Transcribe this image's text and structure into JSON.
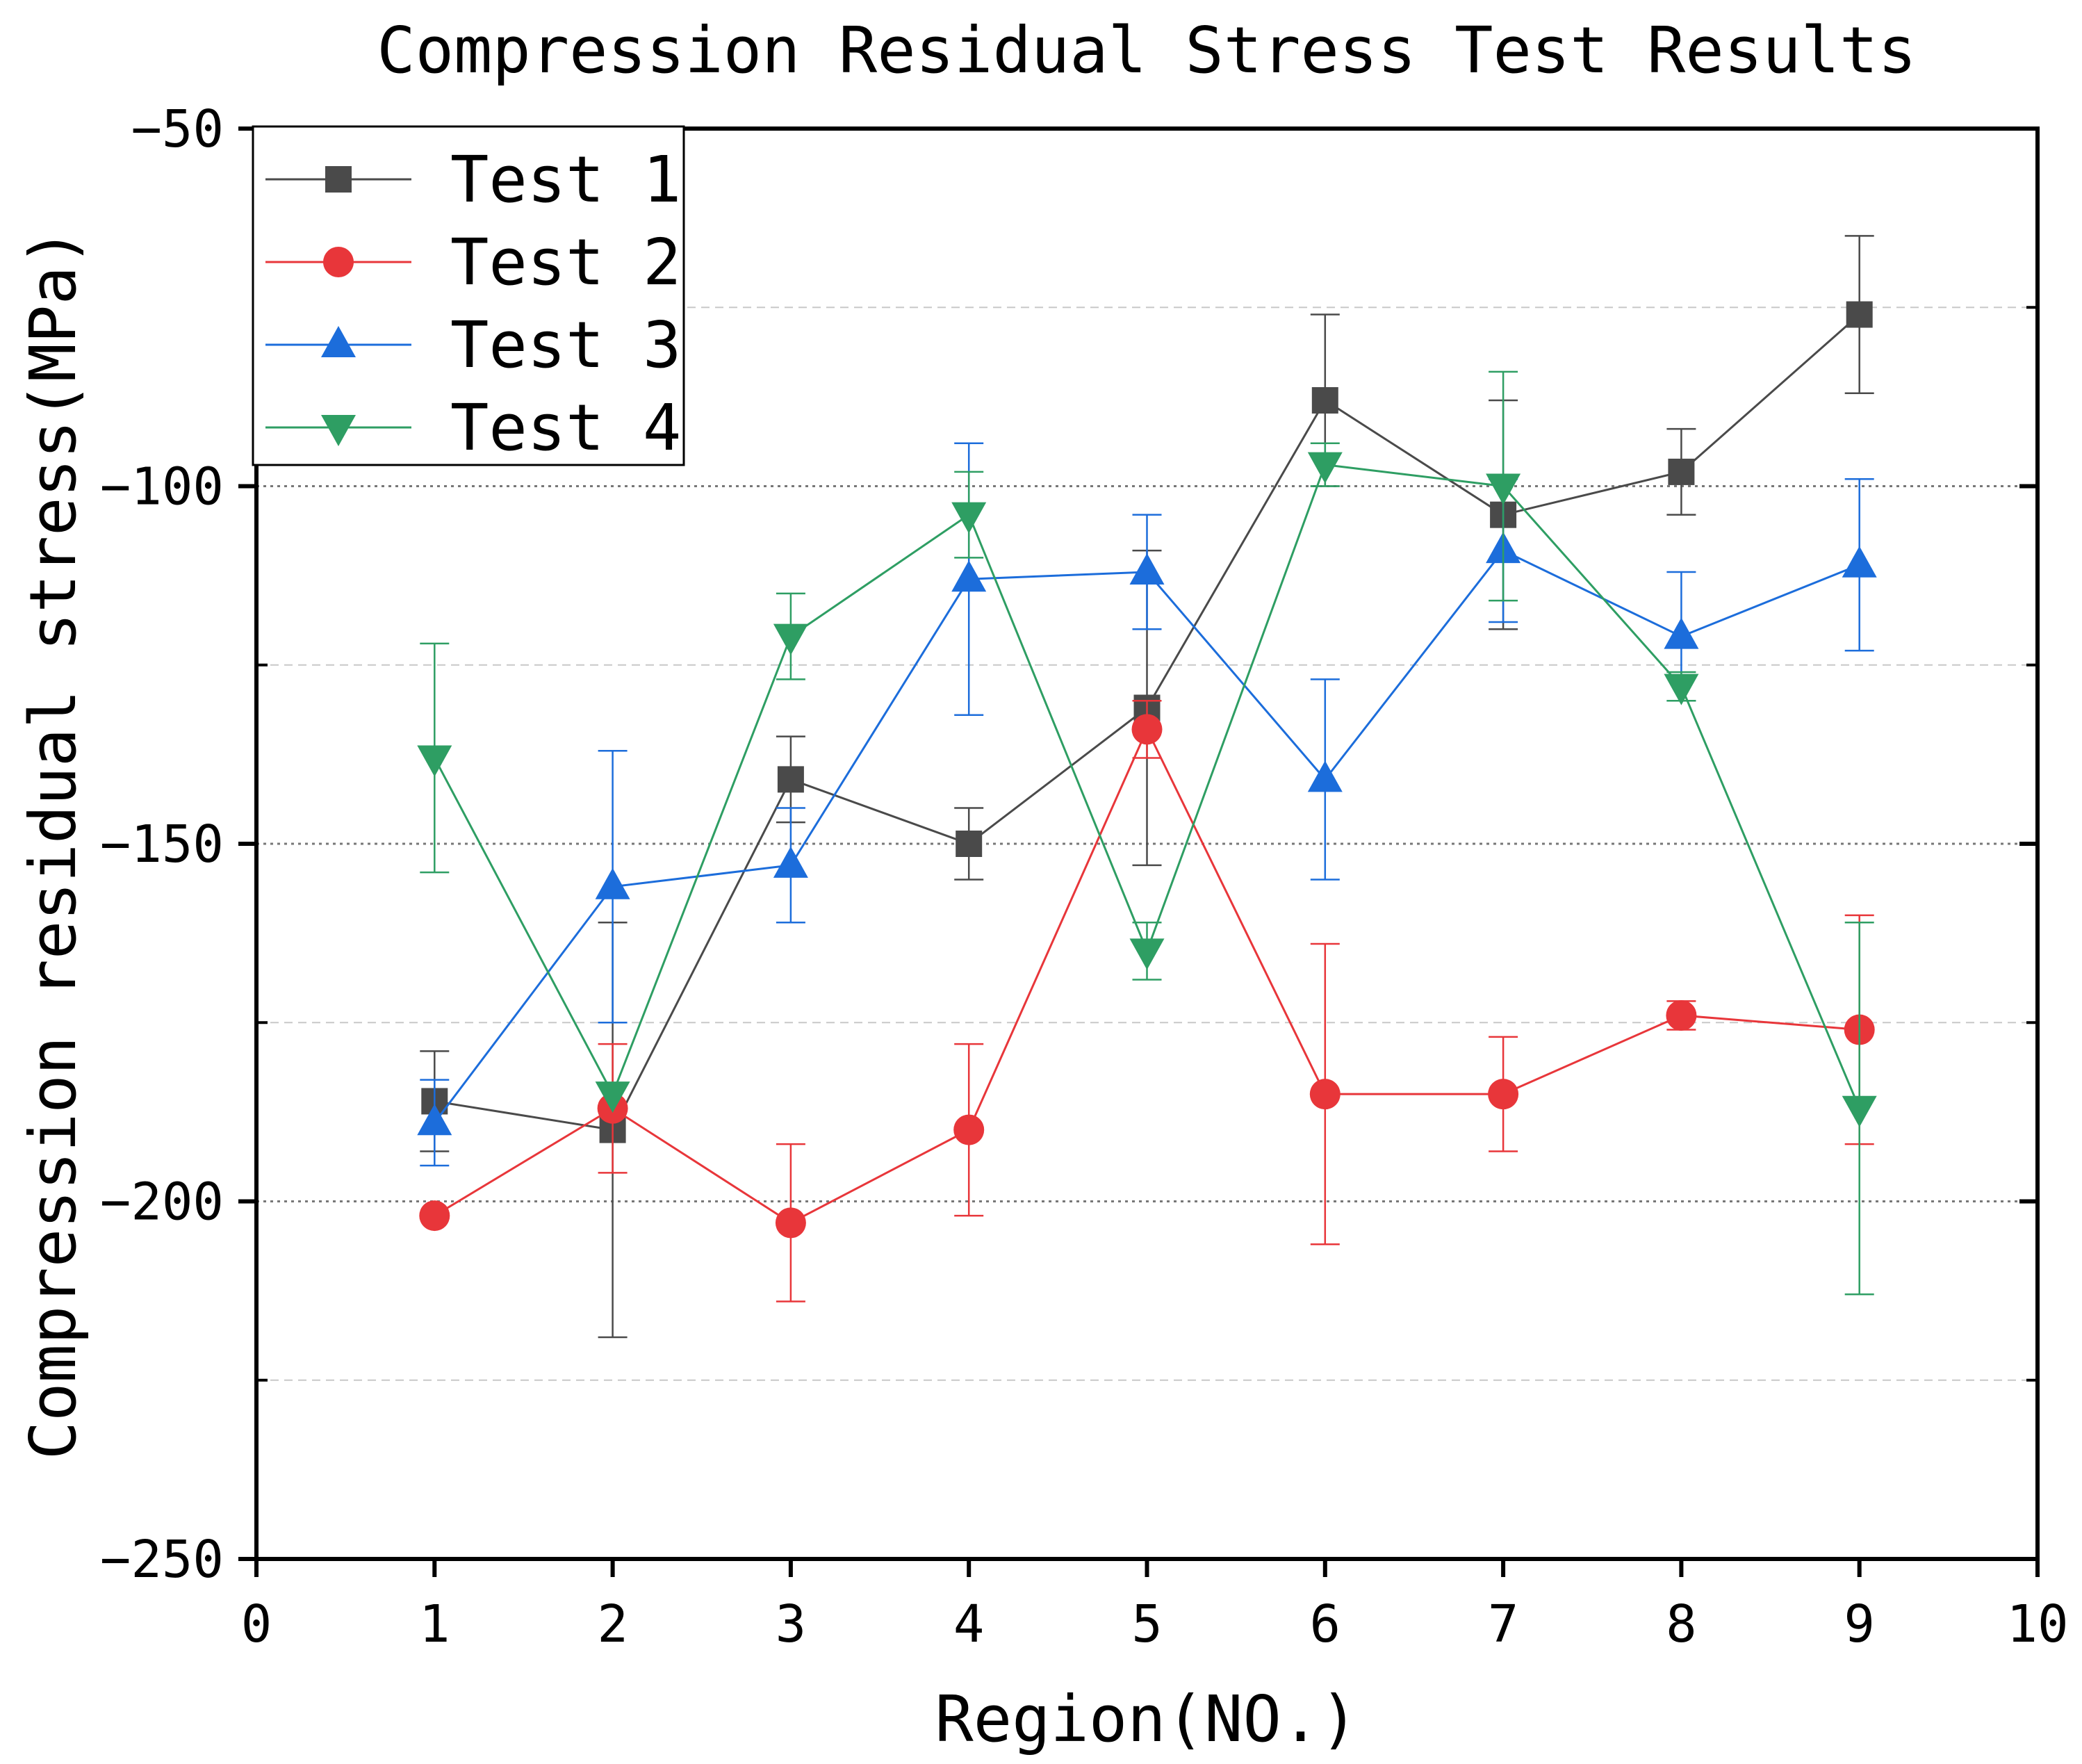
{
  "chart_data": {
    "type": "line",
    "title": "Compression Residual Stress Test Results",
    "xlabel": "Region(NO.)",
    "ylabel": "Compression residual stress(MPa)",
    "xlim": [
      0,
      10
    ],
    "ylim": [
      -250,
      -50
    ],
    "x_ticks": [
      0,
      1,
      2,
      3,
      4,
      5,
      6,
      7,
      8,
      9,
      10
    ],
    "y_ticks": [
      -250,
      -200,
      -150,
      -100,
      -50
    ],
    "y_grid_dotted": [
      -200,
      -150,
      -100
    ],
    "y_grid_dashed": [
      -225,
      -175,
      -125,
      -75
    ],
    "legend_position": "top-left",
    "x": [
      1,
      2,
      3,
      4,
      5,
      6,
      7,
      8,
      9
    ],
    "series": [
      {
        "name": "Test 1",
        "color": "#4a4a4a",
        "marker": "square",
        "values": [
          -186,
          -190,
          -141,
          -150,
          -131,
          -88,
          -104,
          -98,
          -76
        ],
        "error": [
          7,
          29,
          6,
          5,
          22,
          12,
          16,
          6,
          11
        ]
      },
      {
        "name": "Test 2",
        "color": "#e8363a",
        "marker": "circle",
        "values": [
          -202,
          -187,
          -203,
          -190,
          -134,
          -185,
          -185,
          -174,
          -176
        ],
        "error": [
          0,
          9,
          11,
          12,
          4,
          21,
          8,
          2,
          16
        ]
      },
      {
        "name": "Test 3",
        "color": "#1c6ddb",
        "marker": "triangle-up",
        "values": [
          -189,
          -156,
          -153,
          -113,
          -112,
          -141,
          -109,
          -121,
          -111
        ],
        "error": [
          6,
          19,
          8,
          19,
          8,
          14,
          10,
          9,
          12
        ]
      },
      {
        "name": "Test 4",
        "color": "#2e9e63",
        "marker": "triangle-down",
        "values": [
          -138,
          -185,
          -121,
          -104,
          -165,
          -97,
          -100,
          -128,
          -187
        ],
        "error": [
          16,
          0,
          6,
          6,
          4,
          3,
          16,
          2,
          26
        ]
      }
    ]
  }
}
